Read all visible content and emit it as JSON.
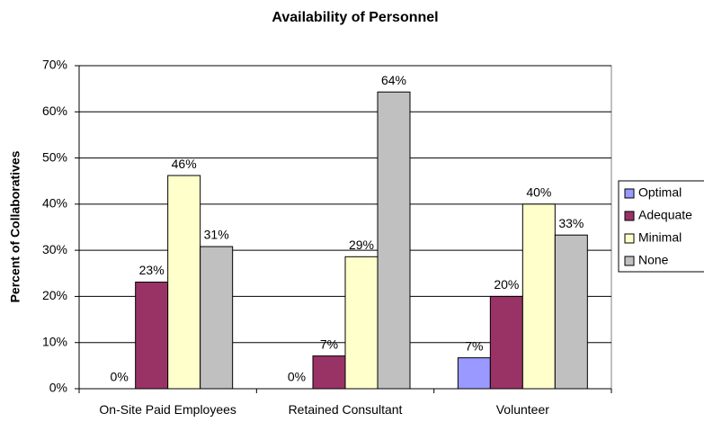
{
  "chart_data": {
    "type": "bar",
    "title": "Availability of Personnel",
    "y_label": "Percent of Collaboratives",
    "categories": [
      "On-Site Paid Employees",
      "Retained Consultant",
      "Volunteer"
    ],
    "series": [
      {
        "name": "Optimal",
        "color": "#9999ff",
        "values": [
          0,
          0,
          6.7
        ],
        "value_labels": [
          "0%",
          "0%",
          "7%"
        ]
      },
      {
        "name": "Adequate",
        "color": "#993366",
        "values": [
          23.1,
          7.1,
          20
        ],
        "value_labels": [
          "23%",
          "7%",
          "20%"
        ]
      },
      {
        "name": "Minimal",
        "color": "#ffffcc",
        "values": [
          46.2,
          28.6,
          40
        ],
        "value_labels": [
          "46%",
          "29%",
          "40%"
        ]
      },
      {
        "name": "None",
        "color": "#c0c0c0",
        "values": [
          30.8,
          64.3,
          33.3
        ],
        "value_labels": [
          "31%",
          "64%",
          "33%"
        ]
      }
    ],
    "ylim": [
      0,
      70
    ],
    "yticks": [
      {
        "value": 0,
        "label": "0%"
      },
      {
        "value": 10,
        "label": "10%"
      },
      {
        "value": 20,
        "label": "20%"
      },
      {
        "value": 30,
        "label": "30%"
      },
      {
        "value": 40,
        "label": "40%"
      },
      {
        "value": 50,
        "label": "50%"
      },
      {
        "value": 60,
        "label": "60%"
      },
      {
        "value": 70,
        "label": "70%"
      }
    ],
    "grid": true,
    "legend": "right"
  }
}
